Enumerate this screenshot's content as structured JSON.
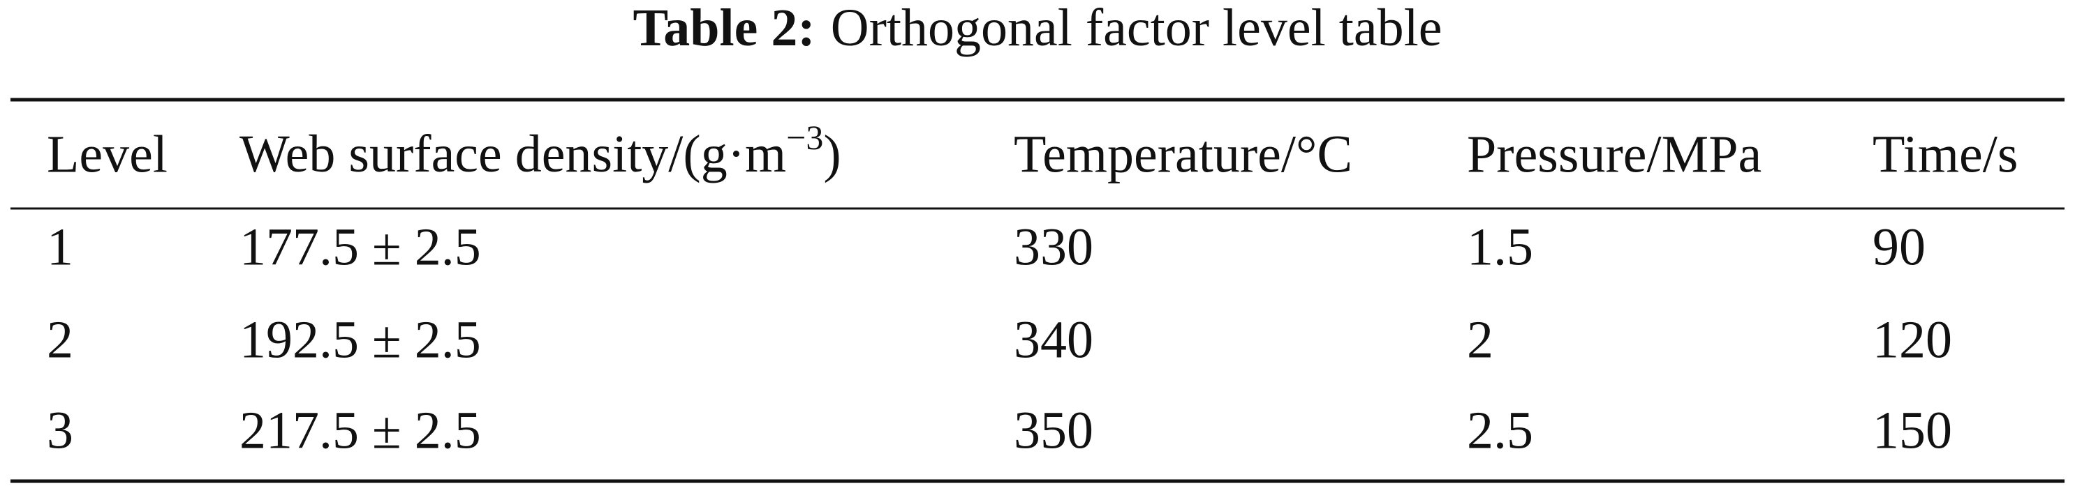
{
  "title": {
    "label": "Table 2:",
    "text": "Orthogonal factor level table"
  },
  "table": {
    "header": [
      "Level",
      {
        "text": "Web surface density/(g·m",
        "sup": "−3",
        "after": ")"
      },
      "Temperature/°C",
      "Pressure/MPa",
      "Time/s"
    ],
    "rows": [
      [
        "1",
        "177.5 ± 2.5",
        "330",
        "1.5",
        "90"
      ],
      [
        "2",
        "192.5 ± 2.5",
        "340",
        "2",
        "120"
      ],
      [
        "3",
        "217.5 ± 2.5",
        "350",
        "2.5",
        "150"
      ]
    ]
  }
}
